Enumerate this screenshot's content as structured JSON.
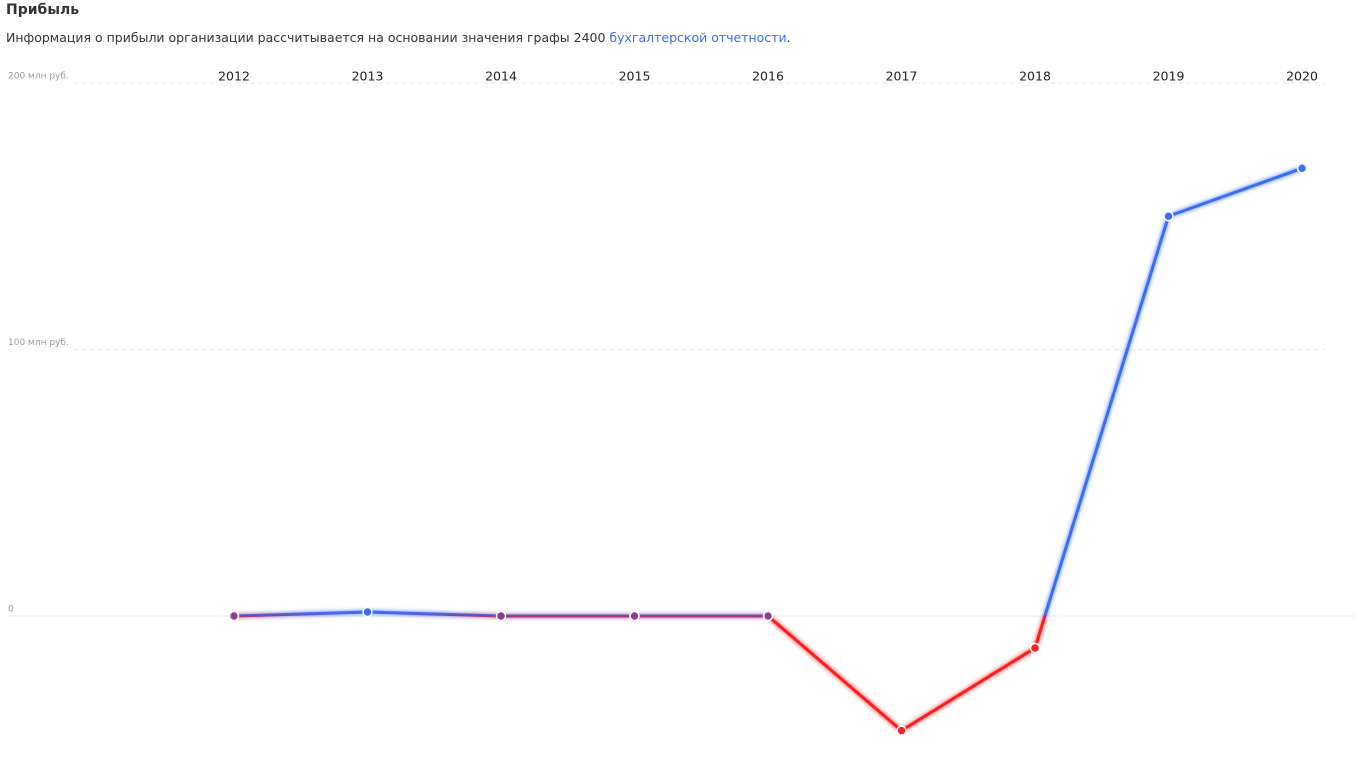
{
  "header": {
    "title": "Прибыль",
    "description": "Информация о прибыли организации рассчитывается на основании значения графы 2400 ",
    "link": "бухгалтерской отчетности",
    "end": "."
  },
  "chart_data": {
    "type": "line",
    "categories": [
      "2012",
      "2013",
      "2014",
      "2015",
      "2016",
      "2017",
      "2018",
      "2019",
      "2020"
    ],
    "values": [
      0,
      1.5,
      0,
      0,
      0,
      -43,
      -12,
      150,
      168
    ],
    "ylim": [
      -55,
      200
    ],
    "yticks": [
      0,
      {
        "value": 100,
        "label": "100 млн руб."
      },
      {
        "value": 200,
        "label": "200 млн руб."
      }
    ],
    "grid": true,
    "positive_color": "#3b6ef6",
    "zero_color": "#8e3f8f",
    "negative_color": "#ff1f1f"
  }
}
